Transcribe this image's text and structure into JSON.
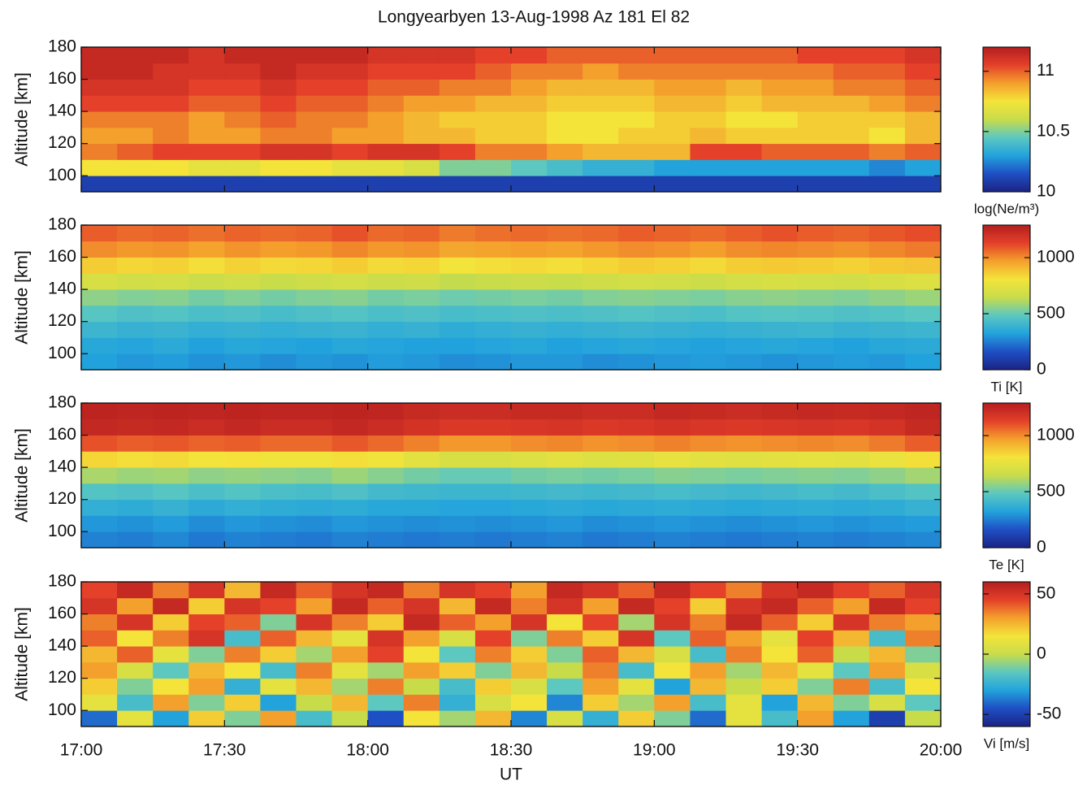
{
  "title": "Longyearbyen 13-Aug-1998 Az 181 El 82",
  "xlabel": "UT",
  "chart_data": [
    {
      "type": "heatmap",
      "ylabel": "Altitude [km]",
      "x_bins": [
        17,
        17.125,
        17.25,
        17.375,
        17.5,
        17.625,
        17.75,
        17.875,
        18,
        18.125,
        18.25,
        18.375,
        18.5,
        18.625,
        18.75,
        18.875,
        19,
        19.125,
        19.25,
        19.375,
        19.5,
        19.625,
        19.75,
        19.875,
        20
      ],
      "y_bins": [
        90,
        100,
        110,
        120,
        130,
        140,
        150,
        160,
        170,
        180
      ],
      "xlim": [
        17,
        20
      ],
      "xticks": [
        17,
        17.5,
        18,
        18.5,
        19,
        19.5,
        20
      ],
      "ylim": [
        90,
        180
      ],
      "yticks": [
        100,
        120,
        140,
        160,
        180
      ],
      "values": [
        [
          10.1,
          10.1,
          10.1,
          10.1,
          10.1,
          10.1,
          10.1,
          10.1,
          10.1,
          10.1,
          10.1,
          10.1,
          10.1,
          10.1,
          10.1,
          10.1,
          10.1,
          10.1,
          10.1,
          10.1,
          10.1,
          10.1,
          10.1,
          10.1
        ],
        [
          10.75,
          10.75,
          10.75,
          10.7,
          10.7,
          10.75,
          10.75,
          10.7,
          10.7,
          10.65,
          10.5,
          10.5,
          10.45,
          10.4,
          10.35,
          10.35,
          10.3,
          10.3,
          10.3,
          10.3,
          10.3,
          10.3,
          10.25,
          10.3
        ],
        [
          10.95,
          11,
          11.05,
          11.05,
          11.05,
          11.1,
          11.1,
          11.05,
          11.1,
          11.1,
          11.05,
          10.95,
          10.95,
          10.9,
          10.85,
          10.85,
          10.85,
          11.05,
          11.05,
          11,
          11,
          11,
          10.95,
          11
        ],
        [
          10.9,
          10.9,
          10.95,
          10.9,
          10.9,
          10.95,
          10.95,
          10.9,
          10.9,
          10.85,
          10.85,
          10.8,
          10.8,
          10.75,
          10.75,
          10.8,
          10.8,
          10.85,
          10.8,
          10.8,
          10.8,
          10.8,
          10.75,
          10.85
        ],
        [
          10.95,
          10.95,
          10.95,
          10.9,
          10.95,
          11,
          10.95,
          10.95,
          10.9,
          10.85,
          10.8,
          10.8,
          10.8,
          10.75,
          10.75,
          10.75,
          10.8,
          10.8,
          10.75,
          10.75,
          10.8,
          10.8,
          10.8,
          10.85
        ],
        [
          11.05,
          11.05,
          11.05,
          11,
          11,
          11.05,
          11,
          11,
          10.95,
          10.9,
          10.9,
          10.85,
          10.85,
          10.8,
          10.8,
          10.8,
          10.85,
          10.85,
          10.8,
          10.85,
          10.85,
          10.85,
          10.9,
          10.95
        ],
        [
          11.1,
          11.1,
          11.1,
          11.05,
          11.05,
          11.1,
          11.05,
          11.05,
          11,
          11,
          10.95,
          10.95,
          10.9,
          10.85,
          10.85,
          10.85,
          10.9,
          10.9,
          10.85,
          10.9,
          10.9,
          10.95,
          10.95,
          11
        ],
        [
          11.15,
          11.15,
          11.1,
          11.1,
          11.1,
          11.15,
          11.1,
          11.1,
          11.05,
          11.05,
          11.05,
          11,
          10.95,
          10.95,
          10.9,
          10.95,
          10.95,
          10.95,
          10.95,
          10.95,
          10.95,
          11,
          11,
          11.05
        ],
        [
          11.15,
          11.15,
          11.15,
          11.1,
          11.15,
          11.15,
          11.15,
          11.15,
          11.1,
          11.1,
          11.1,
          11.05,
          11.05,
          11,
          11,
          11,
          11,
          11,
          11,
          11,
          11.05,
          11.05,
          11.05,
          11.1
        ]
      ],
      "colorbar": {
        "label": "log(Ne/m³)",
        "lim": [
          10,
          11.2
        ],
        "ticks": [
          10,
          10.5,
          11
        ],
        "colors": [
          "#1c2384",
          "#1f4fc4",
          "#22a3dc",
          "#5cc8c0",
          "#c8dc4a",
          "#f4e43a",
          "#f4a02c",
          "#e4402a",
          "#b41e1e"
        ]
      }
    },
    {
      "type": "heatmap",
      "ylabel": "Altitude [km]",
      "x_bins": [
        17,
        17.125,
        17.25,
        17.375,
        17.5,
        17.625,
        17.75,
        17.875,
        18,
        18.125,
        18.25,
        18.375,
        18.5,
        18.625,
        18.75,
        18.875,
        19,
        19.125,
        19.25,
        19.375,
        19.5,
        19.625,
        19.75,
        19.875,
        20
      ],
      "y_bins": [
        90,
        100,
        110,
        120,
        130,
        140,
        150,
        160,
        170,
        180
      ],
      "xlim": [
        17,
        20
      ],
      "xticks": [
        17,
        17.5,
        18,
        18.5,
        19,
        19.5,
        20
      ],
      "ylim": [
        90,
        180
      ],
      "yticks": [
        100,
        120,
        140,
        160,
        180
      ],
      "values": [
        [
          320,
          300,
          310,
          290,
          300,
          280,
          300,
          290,
          310,
          300,
          280,
          290,
          300,
          300,
          280,
          290,
          300,
          310,
          300,
          290,
          300,
          310,
          300,
          320
        ],
        [
          340,
          330,
          350,
          320,
          340,
          330,
          320,
          340,
          330,
          320,
          320,
          330,
          340,
          320,
          330,
          340,
          330,
          320,
          330,
          340,
          330,
          320,
          340,
          350
        ],
        [
          400,
          380,
          390,
          370,
          380,
          370,
          380,
          390,
          370,
          380,
          360,
          370,
          380,
          370,
          380,
          390,
          380,
          370,
          380,
          390,
          400,
          380,
          390,
          400
        ],
        [
          470,
          450,
          460,
          440,
          450,
          430,
          450,
          460,
          440,
          450,
          430,
          440,
          450,
          440,
          450,
          460,
          450,
          440,
          460,
          470,
          460,
          450,
          460,
          480
        ],
        [
          560,
          540,
          550,
          520,
          540,
          520,
          540,
          550,
          520,
          530,
          510,
          520,
          530,
          520,
          540,
          550,
          540,
          530,
          550,
          560,
          550,
          540,
          560,
          580
        ],
        [
          700,
          680,
          690,
          660,
          680,
          650,
          670,
          690,
          660,
          670,
          640,
          650,
          660,
          650,
          670,
          690,
          680,
          660,
          690,
          700,
          690,
          680,
          700,
          720
        ],
        [
          860,
          840,
          850,
          820,
          850,
          830,
          840,
          860,
          830,
          840,
          800,
          820,
          830,
          820,
          840,
          860,
          850,
          830,
          860,
          870,
          860,
          850,
          870,
          880
        ],
        [
          1000,
          980,
          990,
          960,
          990,
          970,
          980,
          1010,
          980,
          990,
          950,
          960,
          970,
          960,
          980,
          1000,
          990,
          970,
          1000,
          1010,
          1000,
          990,
          1010,
          1030
        ],
        [
          1080,
          1060,
          1070,
          1050,
          1070,
          1060,
          1070,
          1100,
          1060,
          1070,
          1030,
          1050,
          1060,
          1050,
          1060,
          1080,
          1070,
          1060,
          1080,
          1100,
          1080,
          1070,
          1090,
          1110
        ]
      ],
      "colorbar": {
        "label": "Ti [K]",
        "lim": [
          0,
          1290
        ],
        "ticks": [
          0,
          500,
          1000
        ],
        "colors": [
          "#1c2384",
          "#1f4fc4",
          "#22a3dc",
          "#5cc8c0",
          "#c8dc4a",
          "#f4e43a",
          "#f4a02c",
          "#e4402a",
          "#b41e1e"
        ]
      }
    },
    {
      "type": "heatmap",
      "ylabel": "Altitude [km]",
      "x_bins": [
        17,
        17.125,
        17.25,
        17.375,
        17.5,
        17.625,
        17.75,
        17.875,
        18,
        18.125,
        18.25,
        18.375,
        18.5,
        18.625,
        18.75,
        18.875,
        19,
        19.125,
        19.25,
        19.375,
        19.5,
        19.625,
        19.75,
        19.875,
        20
      ],
      "y_bins": [
        90,
        100,
        110,
        120,
        130,
        140,
        150,
        160,
        170,
        180
      ],
      "xlim": [
        17,
        20
      ],
      "xticks": [
        17,
        17.5,
        18,
        18.5,
        19,
        19.5,
        20
      ],
      "ylim": [
        90,
        180
      ],
      "yticks": [
        100,
        120,
        140,
        160,
        180
      ],
      "values": [
        [
          260,
          250,
          270,
          240,
          260,
          250,
          240,
          260,
          250,
          240,
          250,
          240,
          250,
          260,
          240,
          250,
          260,
          250,
          240,
          250,
          260,
          250,
          260,
          270
        ],
        [
          300,
          290,
          310,
          280,
          300,
          290,
          280,
          300,
          290,
          280,
          290,
          280,
          290,
          300,
          280,
          290,
          300,
          290,
          280,
          290,
          300,
          290,
          300,
          310
        ],
        [
          370,
          360,
          380,
          350,
          370,
          360,
          350,
          360,
          340,
          340,
          330,
          330,
          340,
          350,
          340,
          350,
          360,
          350,
          340,
          350,
          360,
          350,
          360,
          380
        ],
        [
          460,
          450,
          470,
          440,
          460,
          440,
          430,
          450,
          420,
          410,
          400,
          400,
          410,
          420,
          410,
          420,
          430,
          420,
          410,
          420,
          430,
          420,
          440,
          460
        ],
        [
          600,
          580,
          590,
          560,
          570,
          560,
          550,
          580,
          550,
          520,
          500,
          500,
          520,
          530,
          520,
          530,
          550,
          540,
          530,
          540,
          550,
          540,
          560,
          590
        ],
        [
          840,
          820,
          830,
          800,
          810,
          790,
          790,
          820,
          790,
          740,
          700,
          700,
          720,
          740,
          720,
          730,
          760,
          740,
          730,
          740,
          750,
          740,
          770,
          820
        ],
        [
          1100,
          1080,
          1090,
          1070,
          1080,
          1060,
          1060,
          1090,
          1060,
          1020,
          980,
          980,
          1000,
          1010,
          990,
          1000,
          1020,
          1000,
          990,
          1000,
          1010,
          1000,
          1030,
          1080
        ],
        [
          1240,
          1230,
          1240,
          1220,
          1240,
          1220,
          1220,
          1240,
          1220,
          1190,
          1160,
          1160,
          1170,
          1180,
          1160,
          1170,
          1190,
          1170,
          1160,
          1170,
          1180,
          1170,
          1190,
          1230
        ],
        [
          1260,
          1250,
          1260,
          1250,
          1260,
          1250,
          1250,
          1260,
          1250,
          1230,
          1220,
          1220,
          1230,
          1230,
          1220,
          1220,
          1240,
          1230,
          1220,
          1230,
          1240,
          1230,
          1240,
          1250
        ]
      ],
      "colorbar": {
        "label": "Te [K]",
        "lim": [
          0,
          1290
        ],
        "ticks": [
          0,
          500,
          1000
        ],
        "colors": [
          "#1c2384",
          "#1f4fc4",
          "#22a3dc",
          "#5cc8c0",
          "#c8dc4a",
          "#f4e43a",
          "#f4a02c",
          "#e4402a",
          "#b41e1e"
        ]
      }
    },
    {
      "type": "heatmap",
      "ylabel": "Altitude [km]",
      "x_bins": [
        17,
        17.125,
        17.25,
        17.375,
        17.5,
        17.625,
        17.75,
        17.875,
        18,
        18.125,
        18.25,
        18.375,
        18.5,
        18.625,
        18.75,
        18.875,
        19,
        19.125,
        19.25,
        19.375,
        19.5,
        19.625,
        19.75,
        19.875,
        20
      ],
      "y_bins": [
        90,
        100,
        110,
        120,
        130,
        140,
        150,
        160,
        170,
        180
      ],
      "xlim": [
        17,
        20
      ],
      "xticks": [
        {
          "value": 17,
          "label": "17:00"
        },
        {
          "value": 17.5,
          "label": "17:30"
        },
        {
          "value": 18,
          "label": "18:00"
        },
        {
          "value": 18.5,
          "label": "18:30"
        },
        {
          "value": 19,
          "label": "19:00"
        },
        {
          "value": 19.5,
          "label": "19:30"
        },
        {
          "value": 20,
          "label": "20:00"
        }
      ],
      "ylim": [
        90,
        180
      ],
      "yticks": [
        100,
        120,
        140,
        160,
        180
      ],
      "values": [
        [
          -40,
          10,
          -30,
          20,
          -10,
          30,
          -20,
          0,
          -45,
          15,
          -5,
          25,
          -35,
          5,
          -25,
          20,
          -10,
          -40,
          10,
          -20,
          30,
          -30,
          -50,
          0
        ],
        [
          10,
          -20,
          30,
          -10,
          20,
          -30,
          0,
          25,
          -15,
          35,
          -25,
          5,
          15,
          -35,
          20,
          -5,
          30,
          -20,
          10,
          -30,
          25,
          -10,
          5,
          -15
        ],
        [
          20,
          -10,
          15,
          30,
          -25,
          10,
          25,
          -5,
          35,
          0,
          -20,
          20,
          5,
          -15,
          30,
          10,
          -30,
          25,
          0,
          20,
          -10,
          35,
          -20,
          15
        ],
        [
          30,
          5,
          -15,
          25,
          15,
          -20,
          35,
          10,
          -5,
          30,
          20,
          -10,
          25,
          0,
          35,
          -20,
          15,
          30,
          -5,
          25,
          10,
          -15,
          30,
          5
        ],
        [
          25,
          40,
          10,
          -10,
          35,
          20,
          -5,
          30,
          45,
          15,
          -15,
          35,
          20,
          -10,
          40,
          25,
          5,
          -20,
          35,
          15,
          40,
          0,
          25,
          -10
        ],
        [
          40,
          15,
          35,
          50,
          -20,
          40,
          25,
          10,
          50,
          30,
          5,
          45,
          -10,
          35,
          20,
          50,
          -15,
          40,
          30,
          10,
          45,
          25,
          -20,
          35
        ],
        [
          35,
          50,
          20,
          45,
          40,
          -10,
          50,
          35,
          20,
          55,
          40,
          30,
          50,
          15,
          45,
          -5,
          50,
          35,
          55,
          40,
          20,
          50,
          35,
          30
        ],
        [
          50,
          30,
          55,
          20,
          50,
          45,
          30,
          55,
          40,
          50,
          25,
          55,
          35,
          50,
          30,
          55,
          45,
          20,
          50,
          55,
          40,
          30,
          55,
          45
        ],
        [
          45,
          55,
          35,
          50,
          25,
          55,
          40,
          50,
          55,
          35,
          50,
          45,
          30,
          55,
          50,
          40,
          55,
          45,
          35,
          50,
          55,
          45,
          40,
          50
        ]
      ],
      "colorbar": {
        "label": "Vi [m/s]",
        "lim": [
          -60,
          60
        ],
        "ticks": [
          -50,
          0,
          50
        ],
        "colors": [
          "#1c2384",
          "#1f4fc4",
          "#22a3dc",
          "#5cc8c0",
          "#c8dc4a",
          "#f4e43a",
          "#f4a02c",
          "#e4402a",
          "#b41e1e"
        ]
      }
    }
  ]
}
